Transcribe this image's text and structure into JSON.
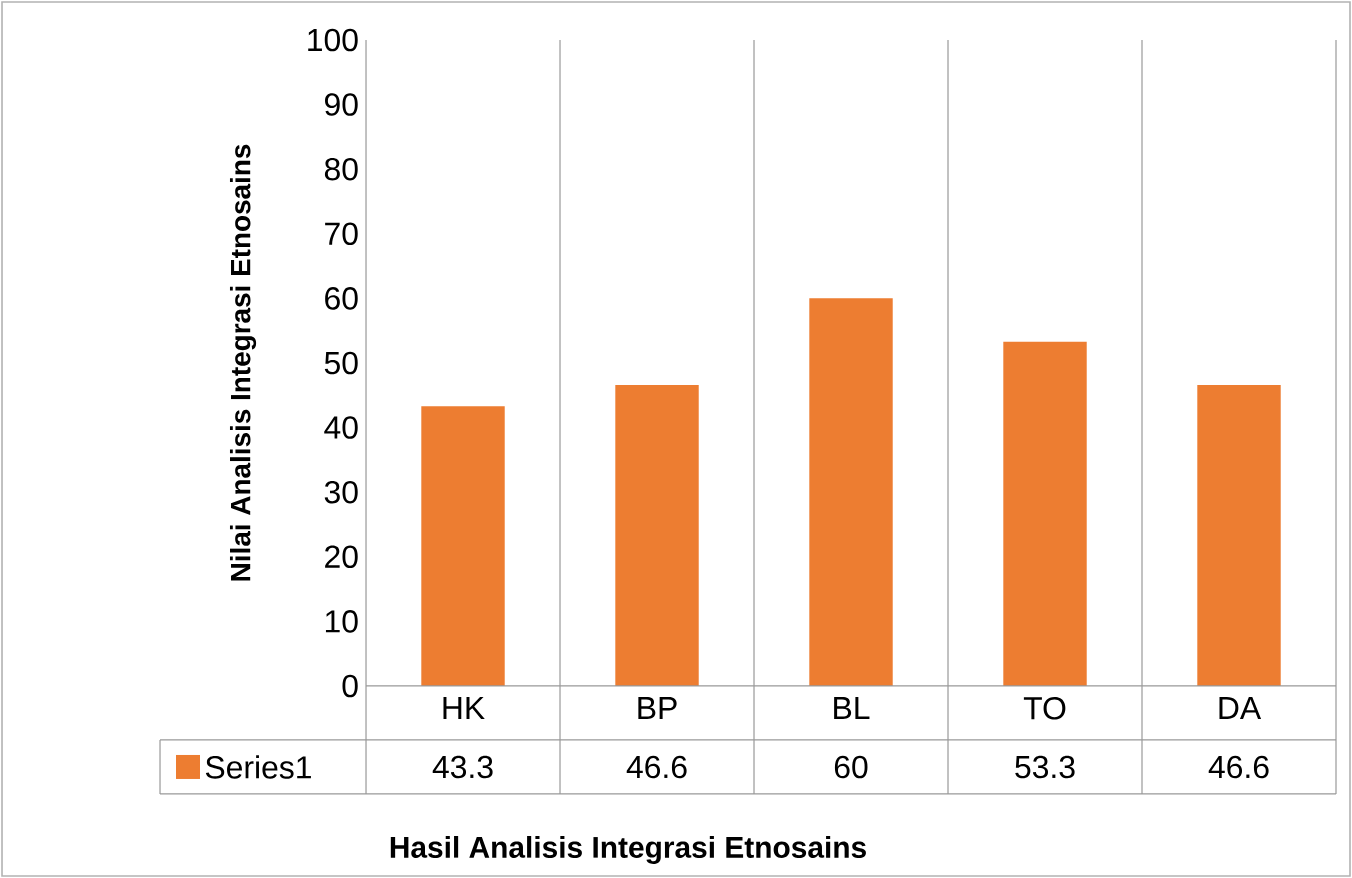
{
  "chart_data": {
    "type": "bar",
    "xlabel": "Hasil Analisis Integrasi Etnosains",
    "ylabel": "Nilai Analisis Integrasi Etnosains",
    "categories": [
      "HK",
      "BP",
      "BL",
      "TO",
      "DA"
    ],
    "series": [
      {
        "name": "Series1",
        "color": "#ed7d31",
        "values": [
          43.3,
          46.6,
          60,
          53.3,
          46.6
        ]
      }
    ],
    "ylim": [
      0,
      100
    ],
    "yticks": [
      0,
      10,
      20,
      30,
      40,
      50,
      60,
      70,
      80,
      90,
      100
    ],
    "data_labels": true,
    "legend": "bottom",
    "grid": false
  }
}
